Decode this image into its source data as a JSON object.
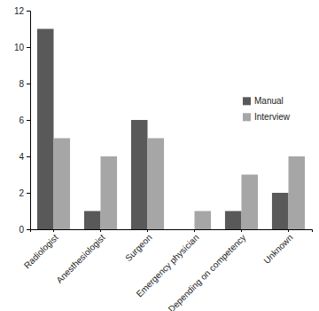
{
  "chart_data": {
    "type": "bar",
    "categories": [
      "Radiologist",
      "Anesthesiologist",
      "Surgeon",
      "Emergency physician",
      "Depending on competency",
      "Unknown"
    ],
    "series": [
      {
        "name": "Manual",
        "color": "#595959",
        "values": [
          11,
          1,
          6,
          0,
          1,
          2
        ]
      },
      {
        "name": "Interview",
        "color": "#a6a6a6",
        "values": [
          5,
          4,
          5,
          1,
          3,
          4
        ]
      }
    ],
    "ylim": [
      0,
      12
    ],
    "yticks": [
      0,
      2,
      4,
      6,
      8,
      10,
      12
    ],
    "grid": false,
    "legend": "right"
  }
}
